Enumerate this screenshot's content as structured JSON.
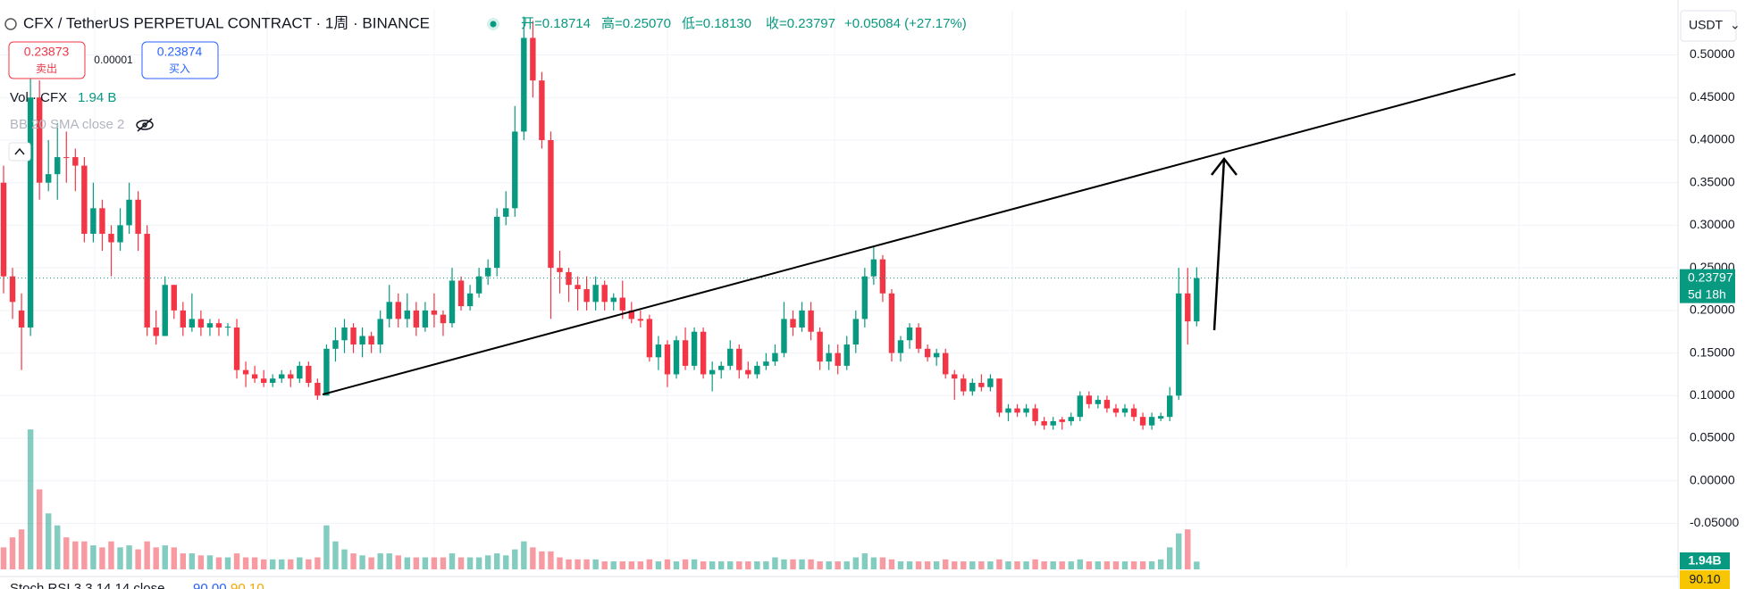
{
  "toolbar": {
    "title": "CFX / TetherUS PERPETUAL CONTRACT · 1周 · BINANCE",
    "open": "开=0.18714",
    "high": "高=0.25070",
    "low": "低=0.18130",
    "close": "收=0.23797",
    "change": "+0.05084 (+27.17%)",
    "sell_price": "0.23873",
    "sell_label": "卖出",
    "spread": "0.00001",
    "buy_price": "0.23874",
    "buy_label": "买入",
    "volume_title": "Vol · CFX",
    "volume_value": "1.94 B",
    "bb_indicator": "BB 20 SMA close 2",
    "currency": "USDT",
    "volume_badge": "1.94B",
    "stoch_title": "Stoch RSI 3 3 14 14 close",
    "stoch_k": "90.00",
    "stoch_d": "90.10",
    "stoch_badge": "90.10"
  },
  "chart_data": {
    "type": "candlestick",
    "up_color": "#089981",
    "down_color": "#f23645",
    "grid": true,
    "ylim": [
      -0.104,
      0.554
    ],
    "yticks": [
      {
        "value": -0.05,
        "label": "-0.05000"
      },
      {
        "value": 0,
        "label": "0.00000"
      },
      {
        "value": 0.05,
        "label": "0.05000"
      },
      {
        "value": 0.1,
        "label": "0.10000"
      },
      {
        "value": 0.15,
        "label": "0.15000"
      },
      {
        "value": 0.2,
        "label": "0.20000"
      },
      {
        "value": 0.25,
        "label": "0.25000"
      },
      {
        "value": 0.3,
        "label": "0.30000"
      },
      {
        "value": 0.35,
        "label": "0.35000"
      },
      {
        "value": 0.4,
        "label": "0.40000"
      },
      {
        "value": 0.45,
        "label": "0.45000"
      },
      {
        "value": 0.5,
        "label": "0.50000"
      }
    ],
    "countdown": "5d 18h",
    "open": [
      0.35,
      0.24,
      0.2,
      0.18,
      0.45,
      0.35,
      0.36,
      0.38,
      0.38,
      0.37,
      0.29,
      0.32,
      0.29,
      0.28,
      0.3,
      0.33,
      0.29,
      0.18,
      0.17,
      0.23,
      0.2,
      0.18,
      0.19,
      0.18,
      0.185,
      0.18,
      0.18,
      0.13,
      0.125,
      0.12,
      0.115,
      0.12,
      0.125,
      0.12,
      0.135,
      0.115,
      0.1,
      0.155,
      0.165,
      0.18,
      0.16,
      0.17,
      0.16,
      0.19,
      0.21,
      0.19,
      0.2,
      0.18,
      0.2,
      0.195,
      0.185,
      0.235,
      0.205,
      0.22,
      0.24,
      0.25,
      0.31,
      0.32,
      0.41,
      0.52,
      0.47,
      0.4,
      0.25,
      0.245,
      0.23,
      0.225,
      0.21,
      0.23,
      0.21,
      0.215,
      0.2,
      0.19,
      0.19,
      0.145,
      0.16,
      0.125,
      0.165,
      0.135,
      0.175,
      0.125,
      0.13,
      0.135,
      0.155,
      0.13,
      0.125,
      0.135,
      0.14,
      0.15,
      0.19,
      0.18,
      0.2,
      0.175,
      0.14,
      0.15,
      0.135,
      0.16,
      0.19,
      0.24,
      0.26,
      0.22,
      0.15,
      0.165,
      0.18,
      0.155,
      0.145,
      0.15,
      0.125,
      0.12,
      0.105,
      0.115,
      0.11,
      0.12,
      0.08,
      0.085,
      0.08,
      0.085,
      0.07,
      0.065,
      0.072,
      0.07,
      0.075,
      0.1,
      0.09,
      0.095,
      0.085,
      0.08,
      0.085,
      0.075,
      0.065,
      0.073,
      0.075,
      0.1,
      0.22,
      0.18714
    ],
    "high": [
      0.37,
      0.25,
      0.22,
      0.5,
      0.47,
      0.4,
      0.42,
      0.41,
      0.39,
      0.38,
      0.35,
      0.33,
      0.3,
      0.32,
      0.35,
      0.34,
      0.3,
      0.2,
      0.24,
      0.23,
      0.21,
      0.22,
      0.2,
      0.19,
      0.19,
      0.185,
      0.19,
      0.14,
      0.135,
      0.13,
      0.125,
      0.13,
      0.13,
      0.14,
      0.14,
      0.12,
      0.16,
      0.18,
      0.19,
      0.185,
      0.18,
      0.175,
      0.2,
      0.23,
      0.22,
      0.22,
      0.21,
      0.21,
      0.22,
      0.2,
      0.25,
      0.24,
      0.23,
      0.25,
      0.26,
      0.32,
      0.34,
      0.44,
      0.545,
      0.54,
      0.48,
      0.41,
      0.27,
      0.25,
      0.24,
      0.24,
      0.24,
      0.235,
      0.22,
      0.235,
      0.21,
      0.2,
      0.195,
      0.17,
      0.165,
      0.17,
      0.18,
      0.18,
      0.18,
      0.14,
      0.14,
      0.165,
      0.16,
      0.14,
      0.14,
      0.15,
      0.16,
      0.21,
      0.2,
      0.21,
      0.21,
      0.18,
      0.16,
      0.16,
      0.17,
      0.2,
      0.25,
      0.275,
      0.265,
      0.225,
      0.17,
      0.185,
      0.185,
      0.16,
      0.155,
      0.155,
      0.13,
      0.125,
      0.12,
      0.125,
      0.125,
      0.12,
      0.09,
      0.09,
      0.09,
      0.09,
      0.075,
      0.075,
      0.075,
      0.08,
      0.105,
      0.105,
      0.1,
      0.1,
      0.09,
      0.09,
      0.09,
      0.08,
      0.08,
      0.08,
      0.11,
      0.25,
      0.25,
      0.2507
    ],
    "low": [
      0.22,
      0.19,
      0.13,
      0.17,
      0.33,
      0.34,
      0.33,
      0.35,
      0.34,
      0.28,
      0.28,
      0.27,
      0.24,
      0.27,
      0.29,
      0.27,
      0.17,
      0.16,
      0.17,
      0.19,
      0.17,
      0.175,
      0.17,
      0.17,
      0.17,
      0.17,
      0.12,
      0.11,
      0.115,
      0.11,
      0.11,
      0.115,
      0.11,
      0.115,
      0.11,
      0.095,
      0.1,
      0.14,
      0.15,
      0.15,
      0.145,
      0.15,
      0.15,
      0.18,
      0.18,
      0.18,
      0.17,
      0.175,
      0.18,
      0.17,
      0.18,
      0.2,
      0.2,
      0.215,
      0.23,
      0.24,
      0.3,
      0.31,
      0.4,
      0.45,
      0.39,
      0.19,
      0.22,
      0.21,
      0.2,
      0.2,
      0.2,
      0.2,
      0.2,
      0.19,
      0.185,
      0.18,
      0.14,
      0.13,
      0.11,
      0.12,
      0.13,
      0.13,
      0.12,
      0.105,
      0.12,
      0.13,
      0.12,
      0.12,
      0.12,
      0.13,
      0.135,
      0.145,
      0.17,
      0.175,
      0.165,
      0.13,
      0.13,
      0.125,
      0.13,
      0.15,
      0.18,
      0.23,
      0.21,
      0.14,
      0.14,
      0.155,
      0.15,
      0.14,
      0.135,
      0.12,
      0.095,
      0.1,
      0.1,
      0.105,
      0.105,
      0.075,
      0.07,
      0.075,
      0.075,
      0.065,
      0.06,
      0.06,
      0.06,
      0.065,
      0.07,
      0.085,
      0.085,
      0.08,
      0.075,
      0.075,
      0.07,
      0.06,
      0.06,
      0.07,
      0.07,
      0.095,
      0.16,
      0.1813
    ],
    "close": [
      0.24,
      0.21,
      0.18,
      0.45,
      0.35,
      0.36,
      0.38,
      0.379,
      0.37,
      0.29,
      0.32,
      0.29,
      0.28,
      0.3,
      0.33,
      0.29,
      0.18,
      0.17,
      0.23,
      0.2,
      0.18,
      0.19,
      0.18,
      0.185,
      0.18,
      0.181,
      0.13,
      0.125,
      0.12,
      0.115,
      0.12,
      0.125,
      0.12,
      0.135,
      0.115,
      0.1,
      0.155,
      0.165,
      0.18,
      0.16,
      0.17,
      0.16,
      0.19,
      0.21,
      0.19,
      0.2,
      0.18,
      0.2,
      0.195,
      0.185,
      0.235,
      0.205,
      0.22,
      0.24,
      0.25,
      0.31,
      0.32,
      0.41,
      0.52,
      0.47,
      0.4,
      0.25,
      0.245,
      0.23,
      0.225,
      0.21,
      0.23,
      0.21,
      0.215,
      0.2,
      0.19,
      0.188,
      0.145,
      0.16,
      0.125,
      0.165,
      0.135,
      0.175,
      0.125,
      0.13,
      0.135,
      0.155,
      0.13,
      0.125,
      0.135,
      0.14,
      0.15,
      0.19,
      0.18,
      0.2,
      0.175,
      0.14,
      0.15,
      0.135,
      0.16,
      0.19,
      0.24,
      0.26,
      0.22,
      0.15,
      0.165,
      0.18,
      0.155,
      0.145,
      0.15,
      0.125,
      0.12,
      0.105,
      0.115,
      0.11,
      0.12,
      0.08,
      0.085,
      0.08,
      0.085,
      0.07,
      0.065,
      0.07,
      0.069,
      0.075,
      0.1,
      0.09,
      0.095,
      0.085,
      0.08,
      0.085,
      0.075,
      0.065,
      0.075,
      0.076,
      0.1,
      0.22,
      0.18714,
      0.23797
    ],
    "volume": [
      5.5,
      8,
      10,
      35,
      20,
      14,
      11,
      8,
      7,
      7,
      6,
      5.5,
      7,
      5.5,
      6,
      5,
      7,
      5.5,
      6,
      5.5,
      4,
      4,
      3.5,
      3.5,
      3,
      3,
      4,
      3,
      3,
      2.5,
      2.5,
      2.5,
      2.5,
      3,
      2.5,
      3,
      11,
      7,
      5,
      4,
      3.5,
      3,
      4,
      4,
      3.5,
      3,
      3,
      3,
      3,
      3,
      4,
      3,
      3,
      3,
      3.5,
      4,
      3.5,
      5,
      7,
      5.5,
      4.5,
      4.5,
      3,
      2.5,
      2.5,
      2.5,
      2.5,
      2,
      2,
      2,
      2,
      2,
      2.5,
      2,
      2.5,
      2,
      2.5,
      2.5,
      2,
      2,
      2,
      2,
      2,
      2,
      2,
      2,
      3,
      2.5,
      2.5,
      2.5,
      2.5,
      2,
      2,
      2,
      2,
      3,
      4,
      3,
      3,
      2.5,
      2,
      2,
      2,
      2,
      2,
      2.5,
      2,
      2,
      2,
      2,
      2,
      2.5,
      2,
      2,
      2,
      2.5,
      2,
      2,
      2,
      2,
      2.5,
      2,
      2,
      2,
      2,
      2,
      2,
      2,
      2,
      2.5,
      5.5,
      9,
      10,
      1.94
    ]
  }
}
